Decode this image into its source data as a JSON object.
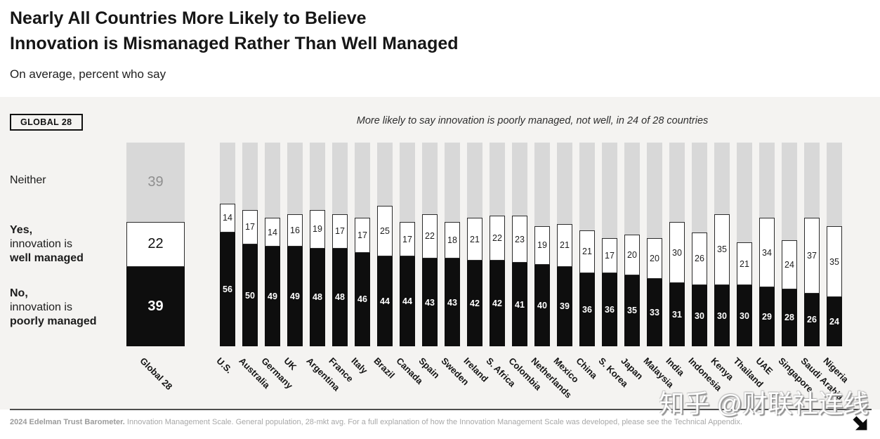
{
  "header": {
    "title_line1": "Nearly All Countries More Likely to Believe",
    "title_line2": "Innovation is Mismanaged Rather Than Well Managed",
    "subtitle": "On average, percent who say"
  },
  "chart": {
    "global_badge": "GLOBAL 28",
    "annotation": "More likely to say innovation is poorly managed, not well, in 24 of 28 countries",
    "legend": {
      "neither": "Neither",
      "yes_line1": "Yes,",
      "yes_line2": "innovation is",
      "yes_line3": "well managed",
      "no_line1": "No,",
      "no_line2": "innovation is",
      "no_line3": "poorly managed"
    }
  },
  "chart_data": {
    "type": "bar",
    "stacked": true,
    "stack_total": 100,
    "value_unit": "percent",
    "legend_position": "left",
    "colors": {
      "band_background": "#f4f3f1",
      "neither_gray": "#d8d8d8",
      "poorly_black": "#0e0e0e",
      "well_white": "#ffffff"
    },
    "global_bar": {
      "label": "Global 28",
      "neither": 39,
      "well_managed": 22,
      "poorly_managed": 39
    },
    "categories": [
      "U.S.",
      "Australia",
      "Germany",
      "UK",
      "Argentina",
      "France",
      "Italy",
      "Brazil",
      "Canada",
      "Spain",
      "Sweden",
      "Ireland",
      "S. Africa",
      "Colombia",
      "Netherlands",
      "Mexico",
      "China",
      "S. Korea",
      "Japan",
      "Malaysia",
      "India",
      "Indonesia",
      "Kenya",
      "Thailand",
      "UAE",
      "Singapore",
      "Saudi Arabia",
      "Nigeria"
    ],
    "series": [
      {
        "name": "Yes, innovation is well managed",
        "color": "#ffffff",
        "values": [
          14,
          17,
          14,
          16,
          19,
          17,
          17,
          25,
          17,
          22,
          18,
          21,
          22,
          23,
          19,
          21,
          21,
          17,
          20,
          20,
          30,
          26,
          35,
          21,
          34,
          24,
          37,
          35
        ]
      },
      {
        "name": "No, innovation is poorly managed",
        "color": "#0e0e0e",
        "values": [
          56,
          50,
          49,
          49,
          48,
          48,
          46,
          44,
          44,
          43,
          43,
          42,
          42,
          41,
          40,
          39,
          36,
          36,
          35,
          33,
          31,
          30,
          30,
          30,
          29,
          28,
          26,
          24
        ]
      },
      {
        "name": "Neither",
        "color": "#d8d8d8"
      }
    ]
  },
  "footer": {
    "source_bold": "2024 Edelman Trust Barometer.",
    "source_rest": " Innovation Management Scale. General population, 28-mkt avg. For a full explanation of how the Innovation Management Scale was developed, please see the Technical Appendix.",
    "watermark": "知乎 @财联社连线"
  }
}
